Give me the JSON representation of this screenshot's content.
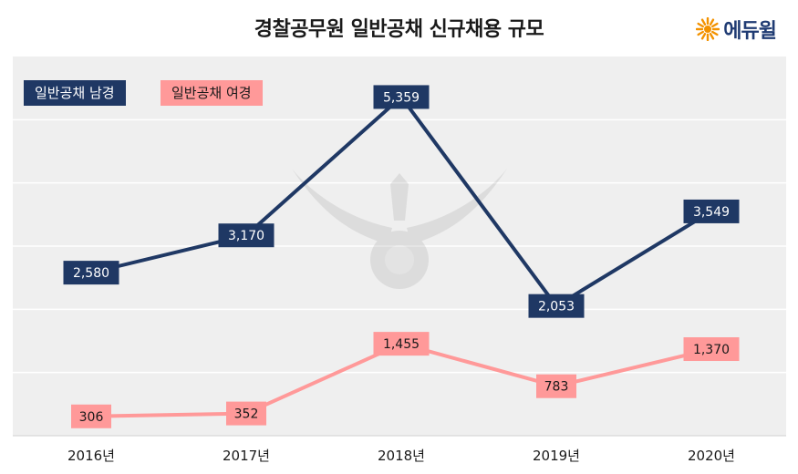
{
  "brand": {
    "name": "에듀윌",
    "icon": "sun-burst-icon",
    "color": "#1f3b73",
    "accent": "#f39200"
  },
  "colors": {
    "male": "#1f3864",
    "female": "#ff9999",
    "plot_bg": "#efefef",
    "grid": "#ffffff"
  },
  "chart_data": {
    "type": "line",
    "title": "경찰공무원 일반공채 신규채용 규모",
    "categories": [
      "2016년",
      "2017년",
      "2018년",
      "2019년",
      "2020년"
    ],
    "series": [
      {
        "name": "일반공채 남경",
        "values": [
          2580,
          3170,
          5359,
          2053,
          3549
        ],
        "labels": [
          "2,580",
          "3,170",
          "5,359",
          "2,053",
          "3,549"
        ]
      },
      {
        "name": "일반공채 여경",
        "values": [
          306,
          352,
          1455,
          783,
          1370
        ],
        "labels": [
          "306",
          "352",
          "1,455",
          "783",
          "1,370"
        ]
      }
    ],
    "legend": "top-left",
    "grid": true,
    "ylim": [
      0,
      6000
    ]
  }
}
